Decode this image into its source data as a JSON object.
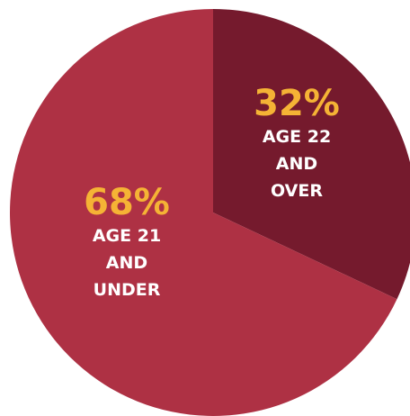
{
  "chart_data": {
    "type": "pie",
    "start_angle_deg": 0,
    "direction": "clockwise",
    "slices": [
      {
        "value": 32,
        "percent_label": "32%",
        "label_lines": [
          "AGE 22",
          "AND",
          "OVER"
        ],
        "color": "#751a2d"
      },
      {
        "value": 68,
        "percent_label": "68%",
        "label_lines": [
          "AGE 21",
          "AND",
          "UNDER"
        ],
        "color": "#ae3144"
      }
    ],
    "label_color": "#ffffff",
    "percent_color": "#f5b335"
  }
}
